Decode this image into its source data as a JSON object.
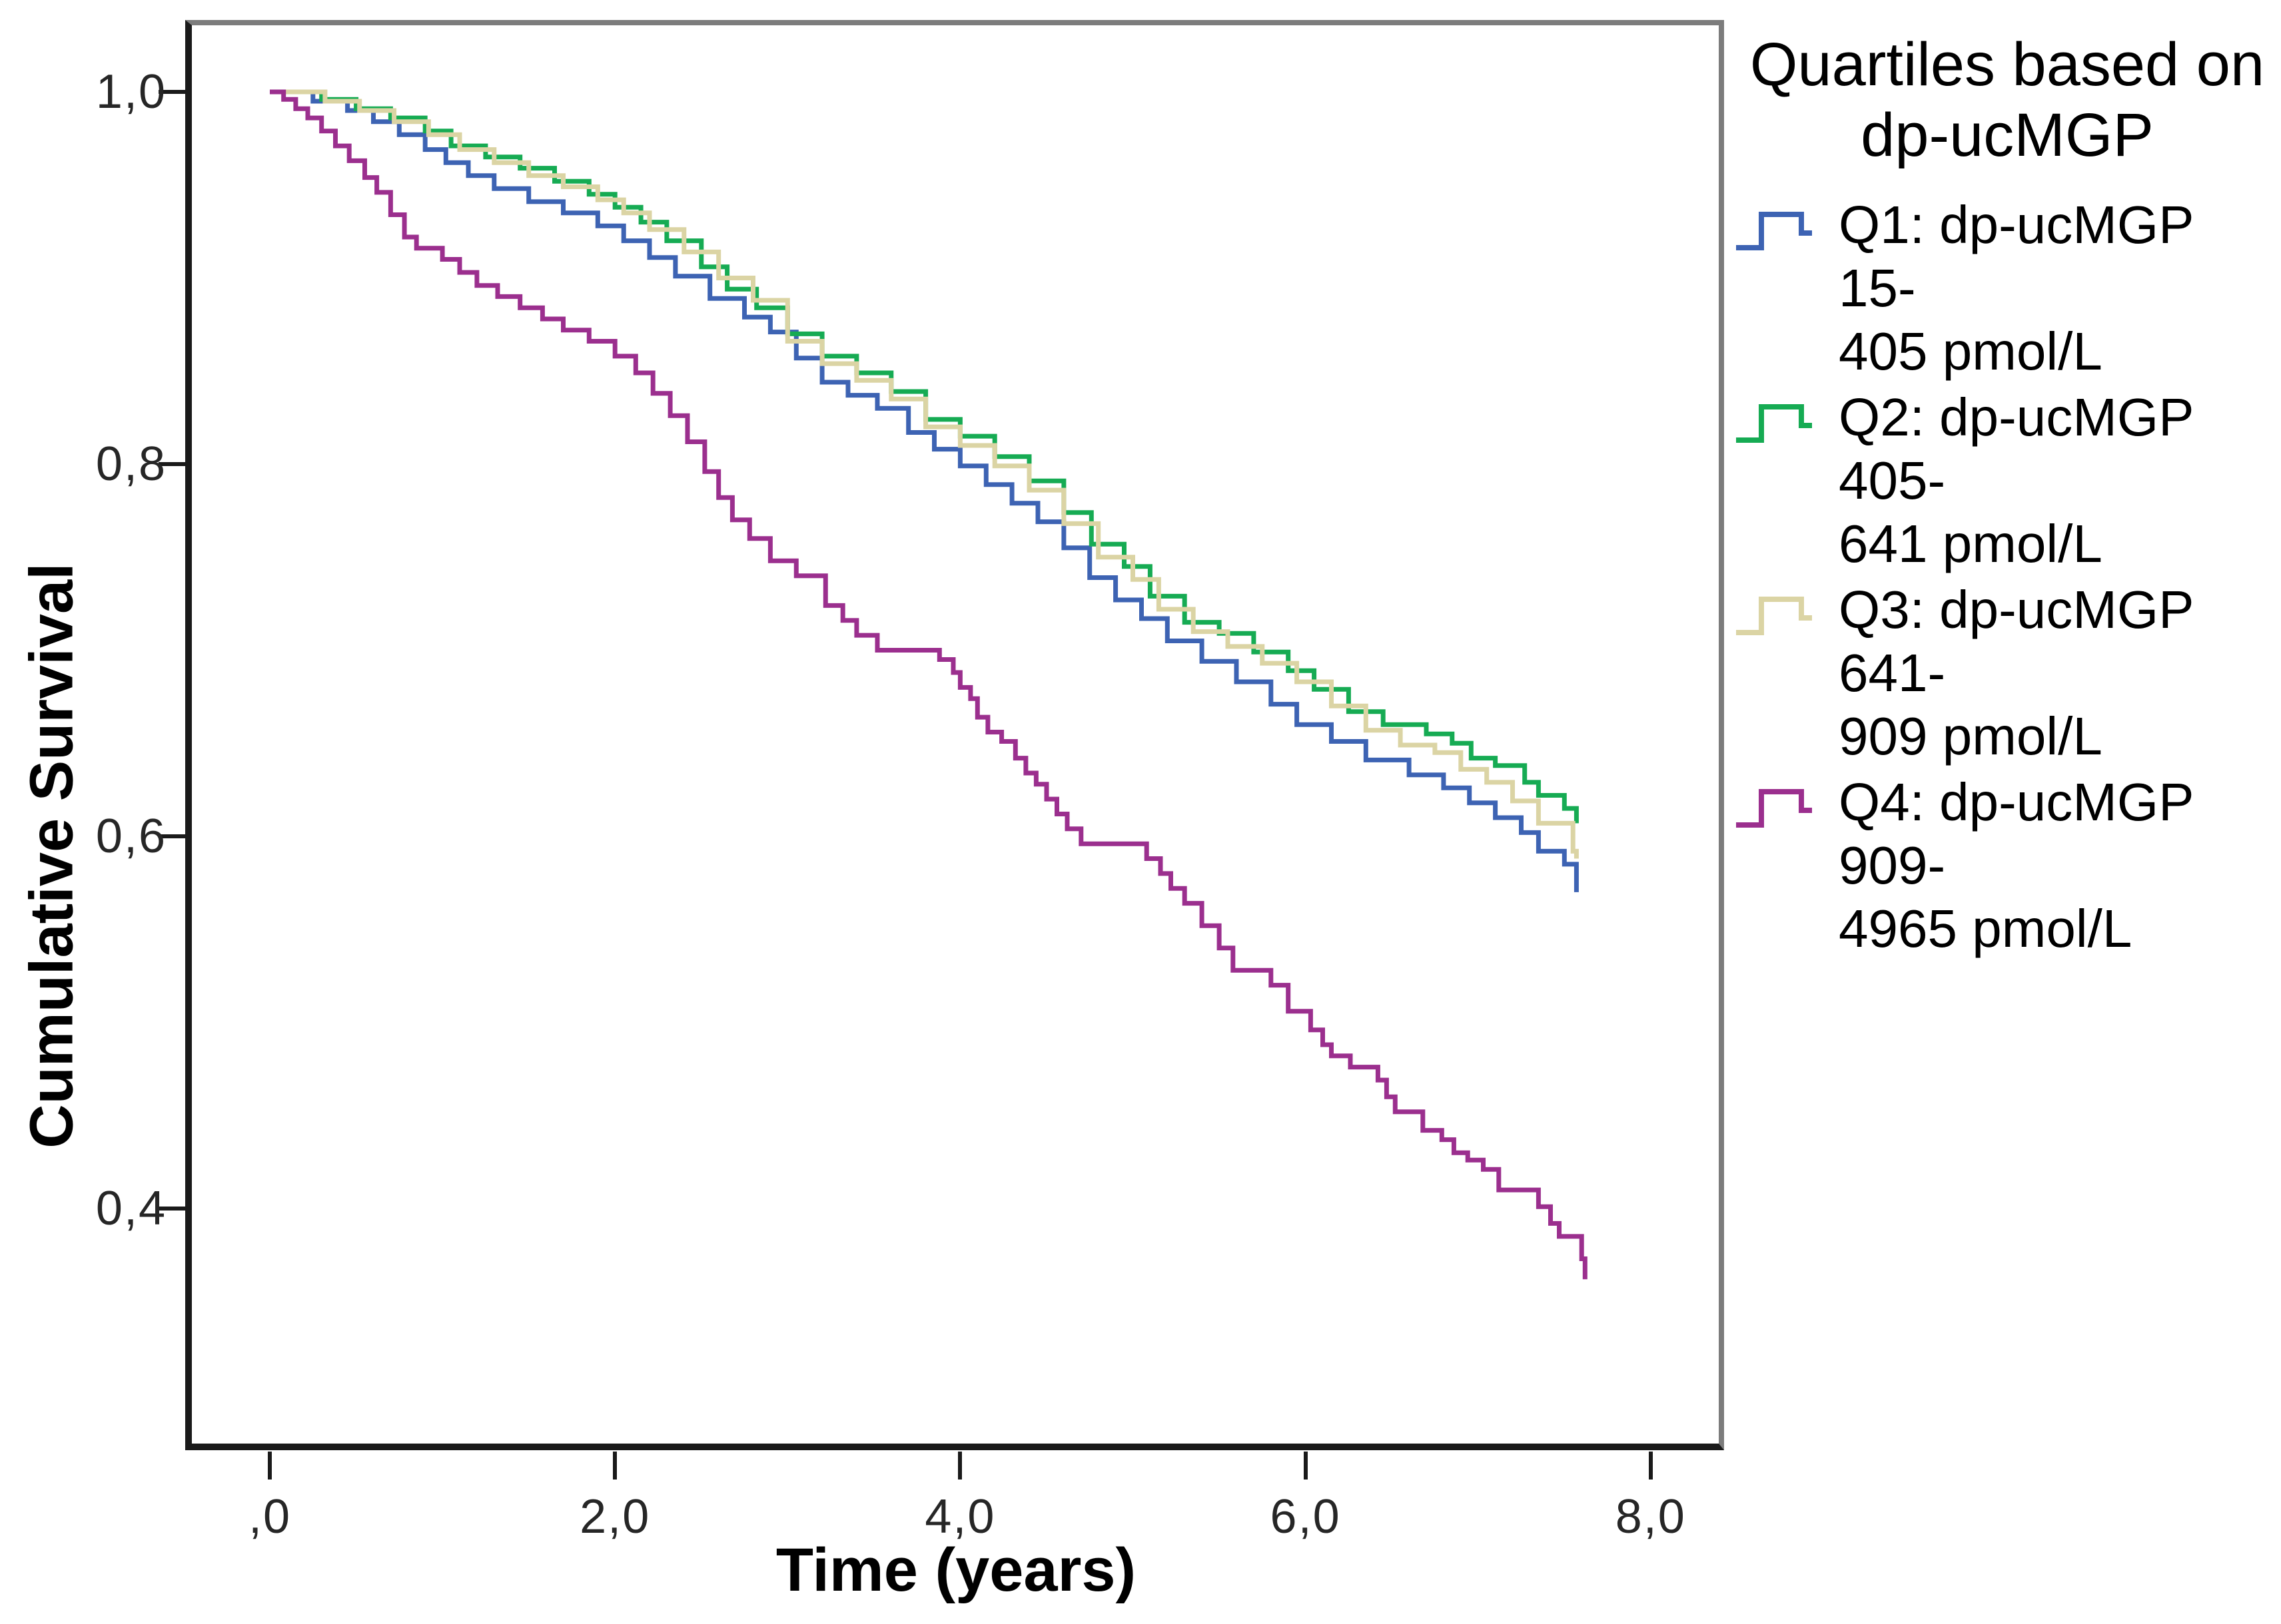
{
  "axes": {
    "x_title": "Time (years)",
    "y_title": "Cumulative Survival",
    "x_ticks": [
      {
        "label": ",0",
        "value": 0
      },
      {
        "label": "2,0",
        "value": 2
      },
      {
        "label": "4,0",
        "value": 4
      },
      {
        "label": "6,0",
        "value": 6
      },
      {
        "label": "8,0",
        "value": 8
      }
    ],
    "y_ticks": [
      {
        "label": "1,0",
        "value": 1.0
      },
      {
        "label": "0,8",
        "value": 0.8
      },
      {
        "label": "0,6",
        "value": 0.6
      },
      {
        "label": "0,4",
        "value": 0.4
      }
    ]
  },
  "legend": {
    "title_lines": "Quartiles based on\ndp-ucMGP",
    "items": [
      {
        "label": "Q1: dp-ucMGP 15-\n405 pmol/L",
        "color": "#3d63b3"
      },
      {
        "label": "Q2: dp-ucMGP 405-\n641 pmol/L",
        "color": "#16ab53"
      },
      {
        "label": "Q3: dp-ucMGP 641-\n909 pmol/L",
        "color": "#dbd4a4"
      },
      {
        "label": "Q4: dp-ucMGP 909-\n4965 pmol/L",
        "color": "#9b2f8e"
      }
    ]
  },
  "colors": {
    "axis_line": "#1a1a1a",
    "frame_line": "#7c7c7c",
    "q1_blue": "#3d63b3",
    "q2_green": "#16ab53",
    "q3_tan": "#dbd4a4",
    "q4_purple": "#9b2f8e"
  },
  "chart_data": {
    "type": "line",
    "subtype": "kaplan-meier-step",
    "step": "after",
    "title": "",
    "xlabel": "Time (years)",
    "ylabel": "Cumulative Survival",
    "xlim": [
      -0.45,
      8.4
    ],
    "ylim": [
      0.27,
      1.03
    ],
    "grid": false,
    "legend_position": "right",
    "legend_title": "Quartiles based on dp-ucMGP",
    "series": [
      {
        "name": "Q1: dp-ucMGP 15-405 pmol/L",
        "color": "#3d63b3",
        "points": [
          [
            0,
            1.0
          ],
          [
            0.25,
            0.995
          ],
          [
            0.45,
            0.99
          ],
          [
            0.6,
            0.984
          ],
          [
            0.75,
            0.977
          ],
          [
            0.9,
            0.969
          ],
          [
            1.02,
            0.962
          ],
          [
            1.15,
            0.955
          ],
          [
            1.3,
            0.948
          ],
          [
            1.5,
            0.941
          ],
          [
            1.7,
            0.935
          ],
          [
            1.9,
            0.928
          ],
          [
            2.05,
            0.92
          ],
          [
            2.2,
            0.911
          ],
          [
            2.35,
            0.901
          ],
          [
            2.55,
            0.889
          ],
          [
            2.75,
            0.879
          ],
          [
            2.9,
            0.871
          ],
          [
            3.05,
            0.857
          ],
          [
            3.2,
            0.844
          ],
          [
            3.35,
            0.837
          ],
          [
            3.52,
            0.83
          ],
          [
            3.7,
            0.817
          ],
          [
            3.85,
            0.808
          ],
          [
            4.0,
            0.799
          ],
          [
            4.15,
            0.789
          ],
          [
            4.3,
            0.779
          ],
          [
            4.45,
            0.769
          ],
          [
            4.6,
            0.755
          ],
          [
            4.75,
            0.739
          ],
          [
            4.9,
            0.727
          ],
          [
            5.05,
            0.717
          ],
          [
            5.2,
            0.705
          ],
          [
            5.4,
            0.694
          ],
          [
            5.6,
            0.683
          ],
          [
            5.8,
            0.671
          ],
          [
            5.95,
            0.66
          ],
          [
            6.15,
            0.651
          ],
          [
            6.35,
            0.641
          ],
          [
            6.6,
            0.633
          ],
          [
            6.8,
            0.626
          ],
          [
            6.95,
            0.618
          ],
          [
            7.1,
            0.61
          ],
          [
            7.25,
            0.602
          ],
          [
            7.35,
            0.592
          ],
          [
            7.5,
            0.585
          ],
          [
            7.57,
            0.57
          ]
        ]
      },
      {
        "name": "Q2: dp-ucMGP 405-641 pmol/L",
        "color": "#16ab53",
        "points": [
          [
            0,
            1.0
          ],
          [
            0.3,
            0.996
          ],
          [
            0.5,
            0.991
          ],
          [
            0.7,
            0.986
          ],
          [
            0.9,
            0.979
          ],
          [
            1.05,
            0.971
          ],
          [
            1.25,
            0.965
          ],
          [
            1.45,
            0.959
          ],
          [
            1.65,
            0.952
          ],
          [
            1.85,
            0.945
          ],
          [
            2.0,
            0.938
          ],
          [
            2.15,
            0.93
          ],
          [
            2.3,
            0.92
          ],
          [
            2.5,
            0.906
          ],
          [
            2.65,
            0.894
          ],
          [
            2.82,
            0.884
          ],
          [
            3.0,
            0.87
          ],
          [
            3.2,
            0.858
          ],
          [
            3.4,
            0.849
          ],
          [
            3.6,
            0.839
          ],
          [
            3.8,
            0.824
          ],
          [
            4.0,
            0.815
          ],
          [
            4.2,
            0.804
          ],
          [
            4.4,
            0.791
          ],
          [
            4.6,
            0.774
          ],
          [
            4.76,
            0.757
          ],
          [
            4.95,
            0.745
          ],
          [
            5.1,
            0.729
          ],
          [
            5.3,
            0.715
          ],
          [
            5.5,
            0.709
          ],
          [
            5.7,
            0.699
          ],
          [
            5.9,
            0.689
          ],
          [
            6.05,
            0.679
          ],
          [
            6.25,
            0.667
          ],
          [
            6.45,
            0.66
          ],
          [
            6.7,
            0.655
          ],
          [
            6.85,
            0.65
          ],
          [
            6.96,
            0.642
          ],
          [
            7.1,
            0.638
          ],
          [
            7.27,
            0.629
          ],
          [
            7.35,
            0.622
          ],
          [
            7.5,
            0.615
          ],
          [
            7.57,
            0.607
          ]
        ]
      },
      {
        "name": "Q3: dp-ucMGP 641-909 pmol/L",
        "color": "#dbd4a4",
        "points": [
          [
            0,
            1.0
          ],
          [
            0.32,
            0.995
          ],
          [
            0.52,
            0.99
          ],
          [
            0.72,
            0.984
          ],
          [
            0.92,
            0.977
          ],
          [
            1.1,
            0.969
          ],
          [
            1.3,
            0.962
          ],
          [
            1.5,
            0.955
          ],
          [
            1.7,
            0.949
          ],
          [
            1.9,
            0.942
          ],
          [
            2.05,
            0.935
          ],
          [
            2.2,
            0.926
          ],
          [
            2.4,
            0.914
          ],
          [
            2.6,
            0.9
          ],
          [
            2.8,
            0.888
          ],
          [
            3.0,
            0.866
          ],
          [
            3.2,
            0.854
          ],
          [
            3.4,
            0.845
          ],
          [
            3.6,
            0.835
          ],
          [
            3.8,
            0.82
          ],
          [
            4.0,
            0.81
          ],
          [
            4.2,
            0.799
          ],
          [
            4.4,
            0.786
          ],
          [
            4.6,
            0.768
          ],
          [
            4.8,
            0.75
          ],
          [
            5.0,
            0.738
          ],
          [
            5.15,
            0.722
          ],
          [
            5.35,
            0.71
          ],
          [
            5.55,
            0.702
          ],
          [
            5.75,
            0.693
          ],
          [
            5.95,
            0.683
          ],
          [
            6.15,
            0.67
          ],
          [
            6.35,
            0.657
          ],
          [
            6.55,
            0.649
          ],
          [
            6.75,
            0.645
          ],
          [
            6.9,
            0.636
          ],
          [
            7.05,
            0.629
          ],
          [
            7.2,
            0.619
          ],
          [
            7.35,
            0.607
          ],
          [
            7.55,
            0.592
          ],
          [
            7.57,
            0.588
          ]
        ]
      },
      {
        "name": "Q4: dp-ucMGP 909-4965 pmol/L",
        "color": "#9b2f8e",
        "points": [
          [
            0,
            1.0
          ],
          [
            0.08,
            0.996
          ],
          [
            0.15,
            0.991
          ],
          [
            0.22,
            0.986
          ],
          [
            0.3,
            0.979
          ],
          [
            0.38,
            0.971
          ],
          [
            0.46,
            0.963
          ],
          [
            0.55,
            0.954
          ],
          [
            0.62,
            0.946
          ],
          [
            0.7,
            0.934
          ],
          [
            0.78,
            0.922
          ],
          [
            0.85,
            0.916
          ],
          [
            1.0,
            0.91
          ],
          [
            1.1,
            0.903
          ],
          [
            1.2,
            0.896
          ],
          [
            1.32,
            0.89
          ],
          [
            1.45,
            0.884
          ],
          [
            1.58,
            0.878
          ],
          [
            1.7,
            0.872
          ],
          [
            1.85,
            0.866
          ],
          [
            2.0,
            0.858
          ],
          [
            2.12,
            0.849
          ],
          [
            2.22,
            0.838
          ],
          [
            2.32,
            0.826
          ],
          [
            2.42,
            0.812
          ],
          [
            2.52,
            0.796
          ],
          [
            2.6,
            0.782
          ],
          [
            2.68,
            0.77
          ],
          [
            2.78,
            0.76
          ],
          [
            2.9,
            0.748
          ],
          [
            3.05,
            0.74
          ],
          [
            3.22,
            0.724
          ],
          [
            3.32,
            0.716
          ],
          [
            3.4,
            0.708
          ],
          [
            3.52,
            0.7
          ],
          [
            3.88,
            0.695
          ],
          [
            3.96,
            0.688
          ],
          [
            4.0,
            0.68
          ],
          [
            4.06,
            0.674
          ],
          [
            4.1,
            0.664
          ],
          [
            4.16,
            0.656
          ],
          [
            4.24,
            0.651
          ],
          [
            4.32,
            0.642
          ],
          [
            4.38,
            0.634
          ],
          [
            4.44,
            0.628
          ],
          [
            4.5,
            0.62
          ],
          [
            4.56,
            0.612
          ],
          [
            4.62,
            0.604
          ],
          [
            4.7,
            0.596
          ],
          [
            5.08,
            0.588
          ],
          [
            5.16,
            0.58
          ],
          [
            5.22,
            0.572
          ],
          [
            5.3,
            0.564
          ],
          [
            5.4,
            0.552
          ],
          [
            5.5,
            0.54
          ],
          [
            5.58,
            0.528
          ],
          [
            5.8,
            0.52
          ],
          [
            5.9,
            0.506
          ],
          [
            6.03,
            0.496
          ],
          [
            6.1,
            0.488
          ],
          [
            6.15,
            0.482
          ],
          [
            6.26,
            0.476
          ],
          [
            6.42,
            0.469
          ],
          [
            6.47,
            0.46
          ],
          [
            6.52,
            0.452
          ],
          [
            6.68,
            0.442
          ],
          [
            6.79,
            0.437
          ],
          [
            6.86,
            0.43
          ],
          [
            6.94,
            0.426
          ],
          [
            7.03,
            0.421
          ],
          [
            7.12,
            0.41
          ],
          [
            7.35,
            0.401
          ],
          [
            7.42,
            0.392
          ],
          [
            7.47,
            0.385
          ],
          [
            7.6,
            0.373
          ],
          [
            7.62,
            0.362
          ]
        ]
      }
    ]
  }
}
